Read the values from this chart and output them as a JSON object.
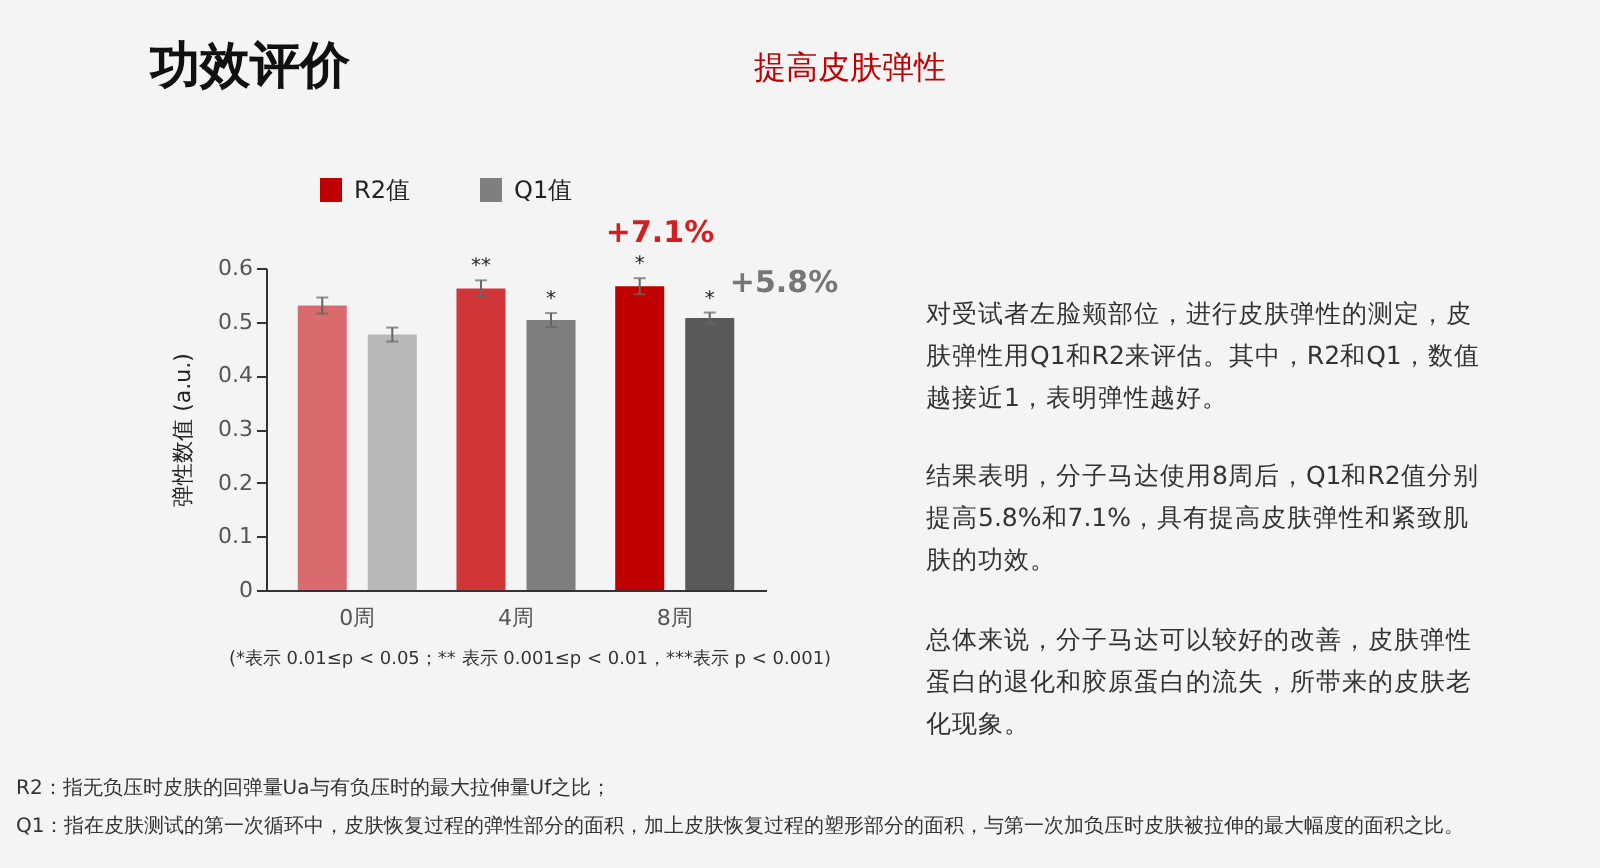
{
  "chart_data": {
    "type": "bar",
    "title": "功效评价",
    "subtitle": "提高皮肤弹性",
    "ylabel": "弹性数值 (a.u.)",
    "categories": [
      "0周",
      "4周",
      "8周"
    ],
    "series": [
      {
        "name": "R2值",
        "color": "#c00000",
        "colors": [
          "#d96b6e",
          "#d03538",
          "#c00000"
        ],
        "values": [
          0.53,
          0.562,
          0.566
        ],
        "errors": [
          0.015,
          0.015,
          0.015
        ],
        "value_labels": [
          null,
          "**",
          "*"
        ]
      },
      {
        "name": "Q1值",
        "color": "#7f7f7f",
        "colors": [
          "#b8b8b8",
          "#7f7f7f",
          "#595959"
        ],
        "values": [
          0.476,
          0.503,
          0.507
        ],
        "errors": [
          0.013,
          0.013,
          0.01
        ],
        "value_labels": [
          null,
          "*",
          "*"
        ]
      }
    ],
    "ylim": [
      0,
      0.6
    ],
    "yticks": [
      0,
      0.1,
      0.2,
      0.3,
      0.4,
      0.5,
      0.6
    ],
    "grid": false,
    "legend": "top",
    "annotations": [
      "+7.1%",
      "+5.8%",
      "(*表示 0.01≤p < 0.05；** 表示 0.001≤p < 0.01，***表示 p < 0.001)",
      "对受试者左脸颊部位，进行皮肤弹性的测定，皮肤弹性用Q1和R2来评估。其中，R2和Q1，数值越接近1，表明弹性越好。",
      "结果表明，分子马达使用8周后，Q1和R2值分别提高5.8%和7.1%，具有提高皮肤弹性和紧致肌肤的功效。",
      "总体来说，分子马达可以较好的改善，皮肤弹性蛋白的退化和胶原蛋白的流失，所带来的皮肤老化现象。",
      "R2：指无负压时皮肤的回弹量Ua与有负压时的最大拉伸量Uf之比；",
      "Q1：指在皮肤测试的第一次循环中，皮肤恢复过程的弹性部分的面积，加上皮肤恢复过程的塑形部分的面积，与第一次加负压时皮肤被拉伸的最大幅度的面积之比。"
    ]
  }
}
